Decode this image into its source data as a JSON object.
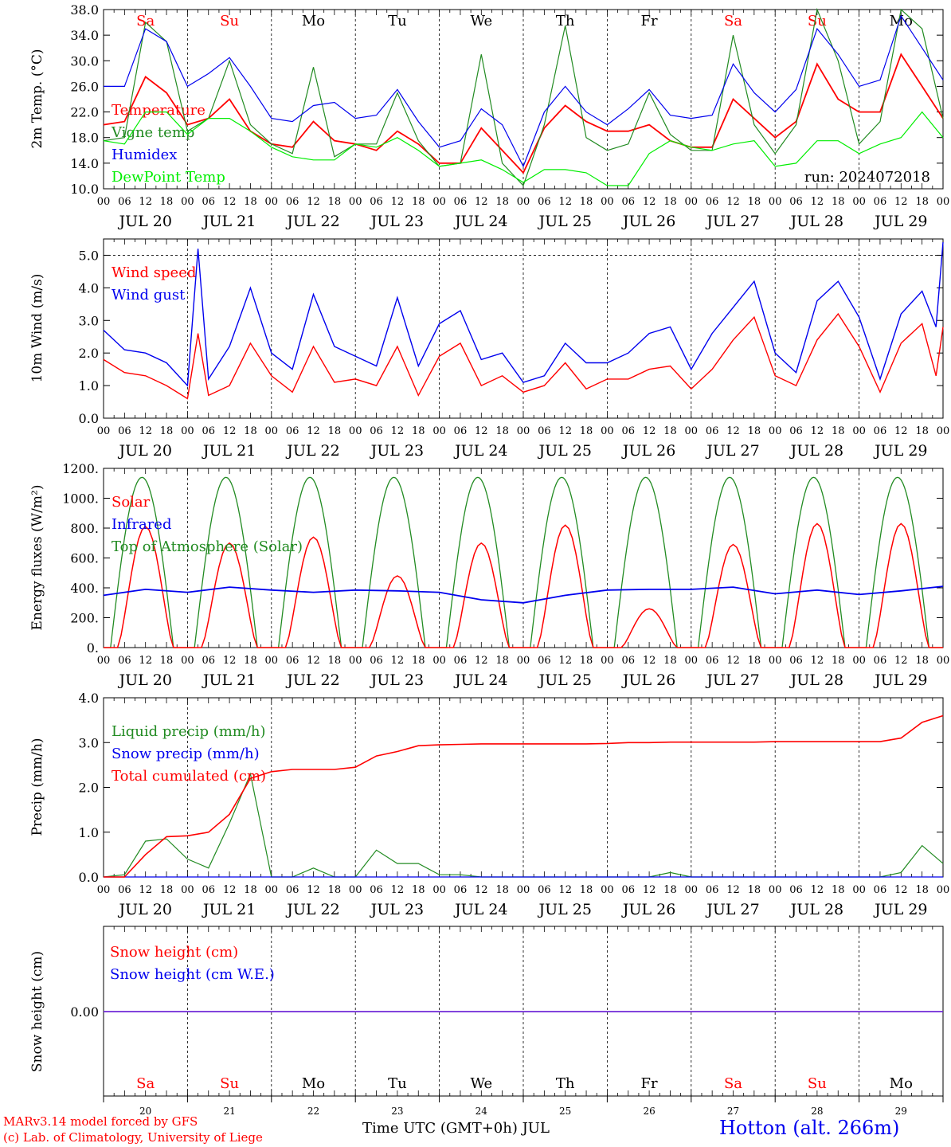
{
  "meta": {
    "run_label": "run: 2024072018",
    "footer_model": "MARv3.14 model forced by GFS",
    "footer_lab": "(c) Lab. of Climatology, University of Liege",
    "footer_xlabel": "Time UTC (GMT+0h) JUL",
    "footer_station": "Hotton (alt. 266m)"
  },
  "days": [
    {
      "weekday": "Sa",
      "date": "JUL 20",
      "num": "20",
      "weekend": true
    },
    {
      "weekday": "Su",
      "date": "JUL 21",
      "num": "21",
      "weekend": true
    },
    {
      "weekday": "Mo",
      "date": "JUL 22",
      "num": "22",
      "weekend": false
    },
    {
      "weekday": "Tu",
      "date": "JUL 23",
      "num": "23",
      "weekend": false
    },
    {
      "weekday": "We",
      "date": "JUL 24",
      "num": "24",
      "weekend": false
    },
    {
      "weekday": "Th",
      "date": "JUL 25",
      "num": "25",
      "weekend": false
    },
    {
      "weekday": "Fr",
      "date": "JUL 26",
      "num": "26",
      "weekend": false
    },
    {
      "weekday": "Sa",
      "date": "JUL 27",
      "num": "27",
      "weekend": true
    },
    {
      "weekday": "Su",
      "date": "JUL 28",
      "num": "28",
      "weekend": true
    },
    {
      "weekday": "Mo",
      "date": "JUL 29",
      "num": "29",
      "weekend": false
    }
  ],
  "hour_ticks": [
    "00",
    "06",
    "12",
    "18"
  ],
  "hour_end": "00",
  "colors": {
    "red": "#ff0000",
    "darkgreen": "#228b22",
    "blue": "#0000ee",
    "lightgreen": "#00ee00",
    "purple": "#9932cc",
    "axis": "#000000"
  },
  "chart_data": [
    {
      "type": "line",
      "ylabel": "2m Temp. (°C)",
      "ylim": [
        10,
        38
      ],
      "yticks": [
        "38.0",
        "34.0",
        "30.0",
        "26.0",
        "22.0",
        "18.0",
        "14.0",
        "10.0"
      ],
      "x_hours": [
        0,
        6,
        12,
        18,
        24,
        30,
        36,
        42,
        48,
        54,
        60,
        66,
        72,
        78,
        84,
        90,
        96,
        102,
        108,
        114,
        120,
        126,
        132,
        138,
        144,
        150,
        156,
        162,
        168,
        174,
        180,
        186,
        192,
        198,
        204,
        210,
        216,
        222,
        228,
        234,
        240
      ],
      "series": [
        {
          "name": "Temperature",
          "color": "#ff0000",
          "values": [
            20,
            20.5,
            27.5,
            25,
            20,
            21,
            24,
            19,
            17,
            16.5,
            20.5,
            17.5,
            17,
            16,
            19,
            17,
            14,
            14,
            19.5,
            16,
            12.5,
            19.5,
            23,
            20.5,
            19,
            19,
            20,
            17.5,
            16.5,
            16.5,
            24,
            21,
            18,
            20.5,
            29.5,
            24,
            22,
            22,
            31,
            26,
            21
          ]
        },
        {
          "name": "Vigne temp",
          "color": "#228b22",
          "values": [
            17.5,
            18,
            36,
            33,
            19,
            21,
            30,
            20,
            17,
            15.5,
            29,
            15,
            17,
            17,
            25,
            17.5,
            13.5,
            14,
            31,
            14,
            10.5,
            20,
            35.5,
            18,
            16,
            17,
            25,
            18.5,
            16,
            16,
            34,
            20,
            15.5,
            20,
            38,
            30,
            17,
            20.5,
            40,
            35,
            21
          ]
        },
        {
          "name": "Humidex",
          "color": "#0000ee",
          "values": [
            26,
            26,
            35,
            33,
            26,
            28,
            30.5,
            26,
            21,
            20.5,
            23,
            23.5,
            21,
            21.5,
            25.5,
            20.5,
            16.5,
            17.5,
            22.5,
            20,
            13.5,
            22,
            26,
            22,
            20,
            22.5,
            25.5,
            21.5,
            21,
            21.5,
            29.5,
            25,
            22,
            25.5,
            35,
            31,
            26,
            27,
            37,
            32,
            27
          ]
        },
        {
          "name": "DewPoint Temp",
          "color": "#00ee00",
          "values": [
            17.5,
            17,
            22,
            22,
            18.5,
            21,
            21,
            19,
            16.5,
            15,
            14.5,
            14.5,
            17,
            16.5,
            18,
            16,
            13.5,
            14,
            14.5,
            13,
            11,
            13,
            13,
            12.5,
            10.5,
            10.5,
            15.5,
            17.5,
            16.5,
            16,
            17,
            17.5,
            13.5,
            14,
            17.5,
            17.5,
            15.5,
            17,
            18,
            22,
            18
          ]
        }
      ]
    },
    {
      "type": "line",
      "ylabel": "10m Wind (m/s)",
      "ylim": [
        0,
        5.5
      ],
      "yticks": [
        "5.0",
        "4.0",
        "3.0",
        "2.0",
        "1.0",
        "0.0"
      ],
      "x_hours": [
        0,
        6,
        12,
        18,
        24,
        27,
        30,
        36,
        42,
        48,
        54,
        60,
        66,
        72,
        78,
        84,
        90,
        96,
        102,
        108,
        114,
        120,
        126,
        132,
        138,
        144,
        150,
        156,
        162,
        168,
        174,
        180,
        186,
        192,
        198,
        204,
        210,
        216,
        222,
        228,
        234,
        238,
        240
      ],
      "series": [
        {
          "name": "Wind speed",
          "color": "#ff0000",
          "values": [
            1.8,
            1.4,
            1.3,
            1.0,
            0.6,
            2.6,
            0.7,
            1.0,
            2.3,
            1.3,
            0.8,
            2.2,
            1.1,
            1.2,
            1.0,
            2.2,
            0.7,
            1.9,
            2.3,
            1.0,
            1.3,
            0.8,
            1.0,
            1.7,
            0.9,
            1.2,
            1.2,
            1.5,
            1.6,
            0.9,
            1.5,
            2.4,
            3.1,
            1.3,
            1.0,
            2.4,
            3.2,
            2.2,
            0.8,
            2.3,
            2.9,
            1.3,
            2.8
          ]
        },
        {
          "name": "Wind gust",
          "color": "#0000ee",
          "values": [
            2.7,
            2.1,
            2.0,
            1.7,
            1.0,
            5.2,
            1.2,
            2.2,
            4.0,
            2.0,
            1.5,
            3.8,
            2.2,
            1.9,
            1.6,
            3.7,
            1.6,
            2.9,
            3.3,
            1.8,
            2.0,
            1.1,
            1.3,
            2.3,
            1.7,
            1.7,
            2.0,
            2.6,
            2.8,
            1.5,
            2.6,
            3.4,
            4.2,
            2.0,
            1.4,
            3.6,
            4.2,
            3.1,
            1.2,
            3.2,
            3.9,
            2.8,
            5.4
          ]
        }
      ]
    },
    {
      "type": "line",
      "ylabel": "Energy fluxes (W/m²)",
      "ylim": [
        0,
        1200
      ],
      "yticks": [
        "1200.",
        "1000.",
        "800.",
        "600.",
        "400.",
        "200.",
        "0."
      ],
      "x_hours": [
        0,
        12,
        24,
        36,
        48,
        60,
        72,
        84,
        96,
        108,
        120,
        132,
        144,
        156,
        168,
        180,
        192,
        204,
        216,
        228,
        240
      ],
      "series": [
        {
          "name": "Solar",
          "color": "#ff0000",
          "peaks": [
            810,
            700,
            740,
            480,
            700,
            820,
            260,
            690,
            830,
            830
          ]
        },
        {
          "name": "Infrared",
          "color": "#0000ee",
          "values": [
            350,
            390,
            370,
            405,
            385,
            370,
            385,
            380,
            370,
            320,
            300,
            350,
            385,
            390,
            390,
            405,
            360,
            385,
            355,
            380,
            410
          ]
        },
        {
          "name": "Top of Atmosphere (Solar)",
          "color": "#228b22",
          "peak": 1140
        }
      ]
    },
    {
      "type": "line",
      "ylabel": "Precip (mm/h)",
      "ylim": [
        0,
        4
      ],
      "yticks": [
        "4.0",
        "3.0",
        "2.0",
        "1.0",
        "0.0"
      ],
      "x_hours": [
        0,
        6,
        12,
        18,
        24,
        30,
        36,
        42,
        48,
        54,
        60,
        66,
        72,
        78,
        84,
        90,
        96,
        102,
        108,
        114,
        120,
        126,
        132,
        138,
        144,
        150,
        156,
        162,
        168,
        174,
        180,
        186,
        192,
        198,
        204,
        210,
        216,
        222,
        228,
        234,
        240
      ],
      "series": [
        {
          "name": "Liquid precip (mm/h)",
          "color": "#228b22",
          "values": [
            0,
            0.05,
            0.8,
            0.85,
            0.4,
            0.2,
            1.2,
            2.3,
            0,
            0,
            0.2,
            0,
            0,
            0.6,
            0.3,
            0.3,
            0.05,
            0.05,
            0,
            0,
            0,
            0,
            0,
            0,
            0,
            0,
            0,
            0.1,
            0,
            0,
            0,
            0,
            0,
            0,
            0,
            0,
            0,
            0,
            0.1,
            0.7,
            0.3
          ]
        },
        {
          "name": "Snow precip (mm/h)",
          "color": "#0000ee",
          "values": [
            0,
            0,
            0,
            0,
            0,
            0,
            0,
            0,
            0,
            0,
            0,
            0,
            0,
            0,
            0,
            0,
            0,
            0,
            0,
            0,
            0,
            0,
            0,
            0,
            0,
            0,
            0,
            0,
            0,
            0,
            0,
            0,
            0,
            0,
            0,
            0,
            0,
            0,
            0,
            0,
            0
          ]
        },
        {
          "name": "Total cumulated (cm)",
          "color": "#ff0000",
          "values": [
            0,
            0,
            0.5,
            0.9,
            0.92,
            1.0,
            1.4,
            2.2,
            2.35,
            2.4,
            2.4,
            2.4,
            2.45,
            2.7,
            2.8,
            2.93,
            2.95,
            2.96,
            2.97,
            2.97,
            2.97,
            2.97,
            2.97,
            2.97,
            2.98,
            3.0,
            3.0,
            3.01,
            3.01,
            3.01,
            3.01,
            3.01,
            3.02,
            3.02,
            3.02,
            3.02,
            3.02,
            3.02,
            3.1,
            3.45,
            3.6
          ]
        }
      ]
    },
    {
      "type": "line",
      "ylabel": "Snow height (cm)",
      "ytick": "0.00",
      "series": [
        {
          "name": "Snow height (cm)",
          "color": "#ff0000",
          "value": 0
        },
        {
          "name": "Snow height (cm W.E.)",
          "color": "#0000ee",
          "value": 0
        }
      ]
    }
  ]
}
